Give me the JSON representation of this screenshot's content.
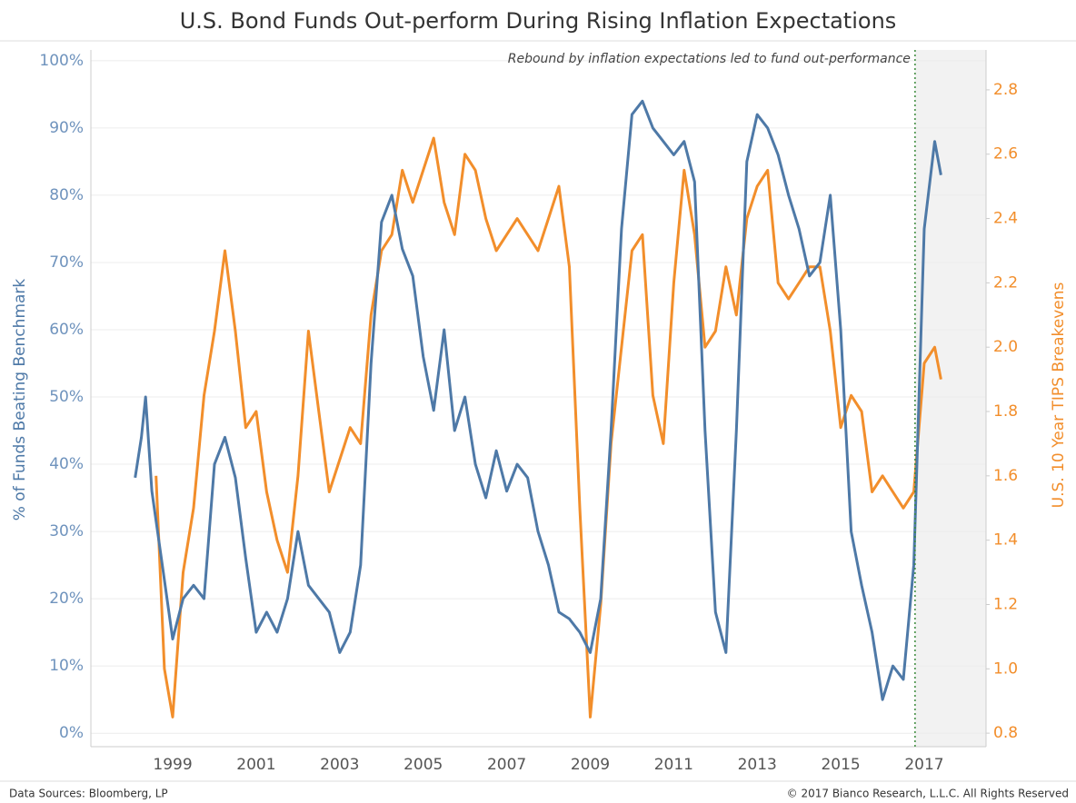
{
  "chart_data": {
    "type": "line",
    "title": "U.S. Bond Funds Out-perform During Rising Inflation Expectations",
    "ylabel": "% of Funds Beating Benchmark",
    "y2label": "U.S. 10 Year TIPS Breakevens",
    "annotation": "Rebound by inflation expectations led to fund out-performance",
    "source": "Data Sources: Bloomberg, LP",
    "copyright": "© 2017 Bianco Research, L.L.C. All Rights Reserved",
    "reference_line": 2016.78,
    "shade_from": 2016.78,
    "xlim": [
      1997.04,
      2018.48
    ],
    "xticks": [
      1999,
      2001,
      2003,
      2005,
      2007,
      2009,
      2011,
      2013,
      2015,
      2017
    ],
    "ylim": [
      -2,
      101.6
    ],
    "yticks": [
      {
        "value": 0,
        "label": "0%"
      },
      {
        "value": 10,
        "label": "10%"
      },
      {
        "value": 20,
        "label": "20%"
      },
      {
        "value": 30,
        "label": "30%"
      },
      {
        "value": 40,
        "label": "40%"
      },
      {
        "value": 50,
        "label": "50%"
      },
      {
        "value": 60,
        "label": "60%"
      },
      {
        "value": 70,
        "label": "70%"
      },
      {
        "value": 80,
        "label": "80%"
      },
      {
        "value": 90,
        "label": "90%"
      },
      {
        "value": 100,
        "label": "100%"
      }
    ],
    "y2lim": [
      0.758,
      2.924
    ],
    "y2ticks": [
      0.8,
      {
        "value": 1.0,
        "label": "1.0"
      },
      1.2,
      1.4,
      1.6,
      1.8,
      {
        "value": 2.0,
        "label": "2.0"
      },
      2.2,
      2.4,
      2.6,
      2.8
    ],
    "grid": true,
    "series": [
      {
        "name": "% of Funds Beating Benchmark",
        "color": "#4e79a7",
        "x": [
          1998.1,
          1998.25,
          1998.35,
          1998.5,
          1998.75,
          1999,
          1999.25,
          1999.5,
          1999.75,
          2000,
          2000.25,
          2000.5,
          2000.75,
          2001,
          2001.25,
          2001.5,
          2001.75,
          2002,
          2002.25,
          2002.5,
          2002.75,
          2003,
          2003.25,
          2003.5,
          2003.75,
          2004,
          2004.25,
          2004.5,
          2004.75,
          2005,
          2005.25,
          2005.5,
          2005.75,
          2006,
          2006.25,
          2006.5,
          2006.75,
          2007,
          2007.25,
          2007.5,
          2007.75,
          2008,
          2008.25,
          2008.5,
          2008.75,
          2009,
          2009.25,
          2009.5,
          2009.75,
          2010,
          2010.25,
          2010.5,
          2010.75,
          2011,
          2011.25,
          2011.5,
          2011.75,
          2012,
          2012.25,
          2012.5,
          2012.75,
          2013,
          2013.25,
          2013.5,
          2013.75,
          2014,
          2014.25,
          2014.5,
          2014.75,
          2015,
          2015.25,
          2015.5,
          2015.75,
          2016,
          2016.25,
          2016.5,
          2016.75,
          2017,
          2017.25,
          2017.4
        ],
        "values": [
          38,
          44,
          50,
          36,
          25,
          14,
          20,
          22,
          20,
          40,
          44,
          38,
          26,
          15,
          18,
          15,
          20,
          30,
          22,
          20,
          18,
          12,
          15,
          25,
          55,
          76,
          80,
          72,
          68,
          56,
          48,
          60,
          45,
          50,
          40,
          35,
          42,
          36,
          40,
          38,
          30,
          25,
          18,
          17,
          15,
          12,
          20,
          45,
          75,
          92,
          94,
          90,
          88,
          86,
          88,
          82,
          45,
          18,
          12,
          45,
          85,
          92,
          90,
          86,
          80,
          75,
          68,
          70,
          80,
          60,
          30,
          22,
          15,
          5,
          10,
          8,
          25,
          75,
          88,
          83
        ]
      },
      {
        "name": "U.S. 10 Year TIPS Breakevens",
        "color": "#f28e2b",
        "axis": "y2",
        "x": [
          1998.6,
          1998.8,
          1999,
          1999.25,
          1999.5,
          1999.75,
          2000,
          2000.25,
          2000.5,
          2000.75,
          2001,
          2001.25,
          2001.5,
          2001.75,
          2002,
          2002.25,
          2002.5,
          2002.75,
          2003,
          2003.25,
          2003.5,
          2003.75,
          2004,
          2004.25,
          2004.5,
          2004.75,
          2005,
          2005.25,
          2005.5,
          2005.75,
          2006,
          2006.25,
          2006.5,
          2006.75,
          2007,
          2007.25,
          2007.5,
          2007.75,
          2008,
          2008.25,
          2008.5,
          2008.75,
          2009,
          2009.25,
          2009.5,
          2009.75,
          2010,
          2010.25,
          2010.5,
          2010.75,
          2011,
          2011.25,
          2011.5,
          2011.75,
          2012,
          2012.25,
          2012.5,
          2012.75,
          2013,
          2013.25,
          2013.5,
          2013.75,
          2014,
          2014.25,
          2014.5,
          2014.75,
          2015,
          2015.25,
          2015.5,
          2015.75,
          2016,
          2016.25,
          2016.5,
          2016.75,
          2017,
          2017.25,
          2017.4
        ],
        "values": [
          1.6,
          1.0,
          0.85,
          1.3,
          1.5,
          1.85,
          2.05,
          2.3,
          2.05,
          1.75,
          1.8,
          1.55,
          1.4,
          1.3,
          1.6,
          2.05,
          1.8,
          1.55,
          1.65,
          1.75,
          1.7,
          2.1,
          2.3,
          2.35,
          2.55,
          2.45,
          2.55,
          2.65,
          2.45,
          2.35,
          2.6,
          2.55,
          2.4,
          2.3,
          2.35,
          2.4,
          2.35,
          2.3,
          2.4,
          2.5,
          2.25,
          1.5,
          0.85,
          1.2,
          1.7,
          2.0,
          2.3,
          2.35,
          1.85,
          1.7,
          2.2,
          2.55,
          2.35,
          2.0,
          2.05,
          2.25,
          2.1,
          2.4,
          2.5,
          2.55,
          2.2,
          2.15,
          2.2,
          2.25,
          2.25,
          2.05,
          1.75,
          1.85,
          1.8,
          1.55,
          1.6,
          1.55,
          1.5,
          1.55,
          1.95,
          2.0,
          1.9
        ]
      }
    ]
  }
}
